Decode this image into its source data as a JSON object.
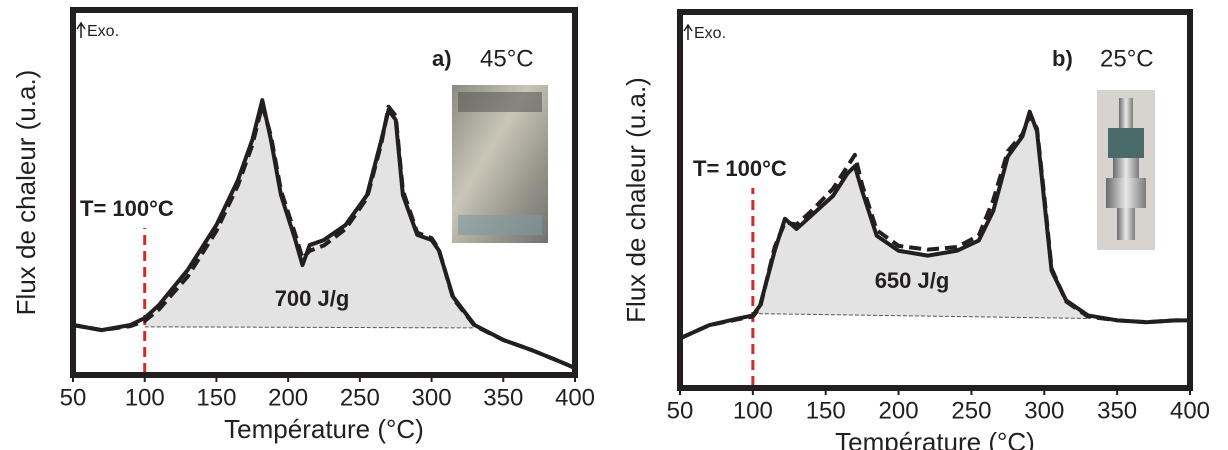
{
  "chart_data": [
    {
      "type": "line",
      "panel_label": "a)",
      "condition": "45°C",
      "exo_label": "Exo.",
      "marker_label": "T= 100°C",
      "marker_x": 100,
      "marker_color": "#d42a2a",
      "energy_label": "700 J/g",
      "x_label": "Température (°C)",
      "y_label": "Flux de chaleur (u.a.)",
      "fill_color": "#e3e3e3",
      "x": [
        50,
        70,
        90,
        100,
        110,
        130,
        150,
        165,
        175,
        182,
        188,
        195,
        205,
        210,
        215,
        225,
        240,
        255,
        265,
        270,
        275,
        280,
        290,
        300,
        305,
        315,
        330,
        350,
        370,
        390,
        400
      ],
      "series": [
        {
          "color": "#231f20",
          "style": "solid",
          "values": [
            13.7,
            12.3,
            13.7,
            15.6,
            19.2,
            28.8,
            41.1,
            53.4,
            64.4,
            75.3,
            64.4,
            49.3,
            37.0,
            30.1,
            35.6,
            37.0,
            41.1,
            49.3,
            64.4,
            72.6,
            69.9,
            49.3,
            38.4,
            37.0,
            34.2,
            21.4,
            13.7,
            9.6,
            6.8,
            3.6,
            1.9
          ]
        },
        {
          "color": "#231f20",
          "style": "dashed",
          "values": [
            13.7,
            12.3,
            13.4,
            14.8,
            18.0,
            27.0,
            39.5,
            52.0,
            63.0,
            74.0,
            65.5,
            50.5,
            38.5,
            32.0,
            34.0,
            35.5,
            40.0,
            48.5,
            63.5,
            73.5,
            71.0,
            50.5,
            39.0,
            37.5,
            34.5,
            21.0,
            13.5,
            9.6,
            6.8,
            3.6,
            1.9
          ]
        }
      ],
      "baseline": {
        "x": [
          100,
          330
        ],
        "values": [
          13.2,
          12.9
        ]
      },
      "xlim": [
        50,
        400
      ],
      "xticks": [
        50,
        100,
        150,
        200,
        250,
        300,
        350,
        400
      ],
      "ylim": [
        0,
        100
      ]
    },
    {
      "type": "line",
      "panel_label": "b)",
      "condition": "25°C",
      "exo_label": "Exo.",
      "marker_label": "T= 100°C",
      "marker_x": 100,
      "marker_color": "#d42a2a",
      "energy_label": "650 J/g",
      "x_label": "Température (°C)",
      "y_label": "Flux de chaleur (u.a.)",
      "fill_color": "#e3e3e3",
      "x": [
        50,
        70,
        90,
        100,
        105,
        115,
        122,
        130,
        140,
        155,
        165,
        170,
        175,
        185,
        200,
        220,
        240,
        255,
        265,
        275,
        285,
        290,
        295,
        300,
        305,
        315,
        330,
        350,
        370,
        390,
        400
      ],
      "series": [
        {
          "color": "#231f20",
          "style": "solid",
          "values": [
            13.2,
            16.7,
            18.5,
            19.3,
            22.0,
            36.5,
            45.0,
            42.3,
            45.8,
            51.1,
            57.1,
            59.0,
            52.4,
            40.5,
            36.5,
            35.2,
            36.5,
            39.2,
            47.1,
            61.6,
            66.9,
            73.5,
            68.3,
            49.7,
            31.2,
            23.3,
            19.3,
            18.0,
            17.5,
            18.0,
            18.0
          ]
        },
        {
          "color": "#231f20",
          "style": "dashed",
          "values": [
            13.2,
            16.7,
            18.3,
            19.0,
            21.5,
            37.5,
            44.0,
            43.5,
            47.0,
            53.0,
            59.0,
            62.0,
            54.0,
            42.0,
            37.8,
            36.8,
            37.5,
            40.5,
            50.0,
            63.0,
            67.5,
            72.5,
            69.0,
            51.0,
            31.8,
            23.0,
            19.0,
            18.0,
            17.5,
            18.0,
            18.0
          ]
        }
      ],
      "baseline": {
        "x": [
          100,
          330
        ],
        "values": [
          19.8,
          18.5
        ]
      },
      "xlim": [
        50,
        400
      ],
      "xticks": [
        50,
        100,
        150,
        200,
        250,
        300,
        350,
        400
      ],
      "ylim": [
        0,
        100
      ]
    }
  ]
}
